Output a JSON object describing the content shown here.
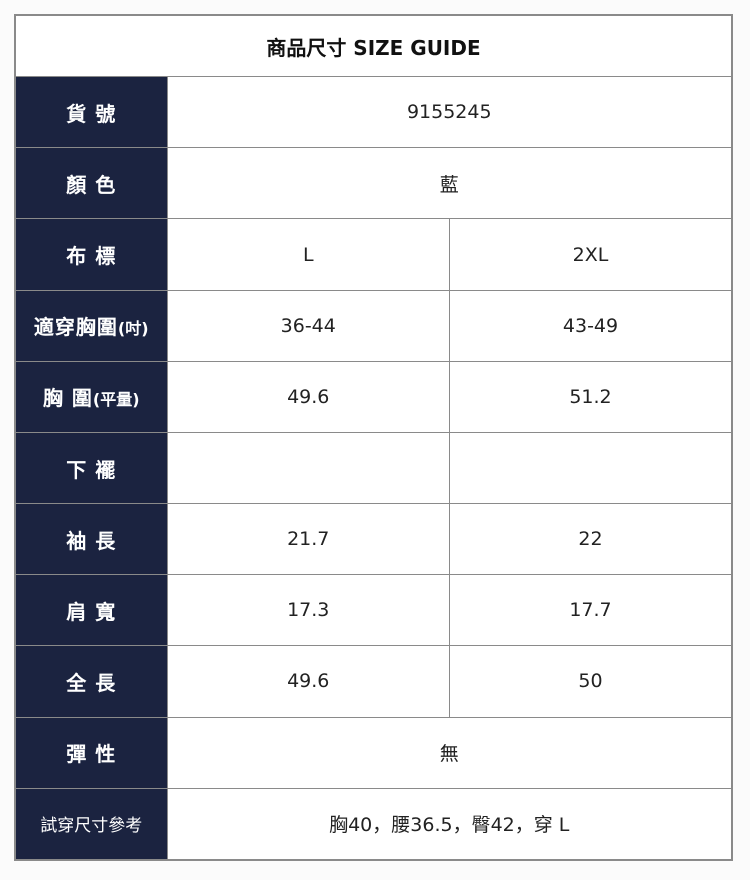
{
  "title": "商品尺寸 SIZE GUIDE",
  "rows": [
    {
      "label": "貨 號",
      "suffix": "",
      "values": [
        "9155245"
      ],
      "merged": true
    },
    {
      "label": "顏 色",
      "suffix": "",
      "values": [
        "藍"
      ],
      "merged": true
    },
    {
      "label": "布 標",
      "suffix": "",
      "values": [
        "L",
        "2XL"
      ]
    },
    {
      "label": "適穿胸圍",
      "suffix": "(吋)",
      "values": [
        "36-44",
        "43-49"
      ]
    },
    {
      "label": "胸 圍",
      "suffix": "(平量)",
      "values": [
        "49.6",
        "51.2"
      ]
    },
    {
      "label": "下 襬",
      "suffix": "",
      "values": [
        "",
        ""
      ]
    },
    {
      "label": "袖 長",
      "suffix": "",
      "values": [
        "21.7",
        "22"
      ]
    },
    {
      "label": "肩 寬",
      "suffix": "",
      "values": [
        "17.3",
        "17.7"
      ]
    },
    {
      "label": "全 長",
      "suffix": "",
      "values": [
        "49.6",
        "50"
      ]
    },
    {
      "label": "彈 性",
      "suffix": "",
      "values": [
        "無"
      ],
      "merged": true
    },
    {
      "label": "試穿尺寸參考",
      "suffix": "",
      "values": [
        "胸40，腰36.5，臀42，穿 L"
      ],
      "merged": true
    }
  ],
  "colors": {
    "label_bg": "#1b2340",
    "border": "#8a8a8a"
  }
}
